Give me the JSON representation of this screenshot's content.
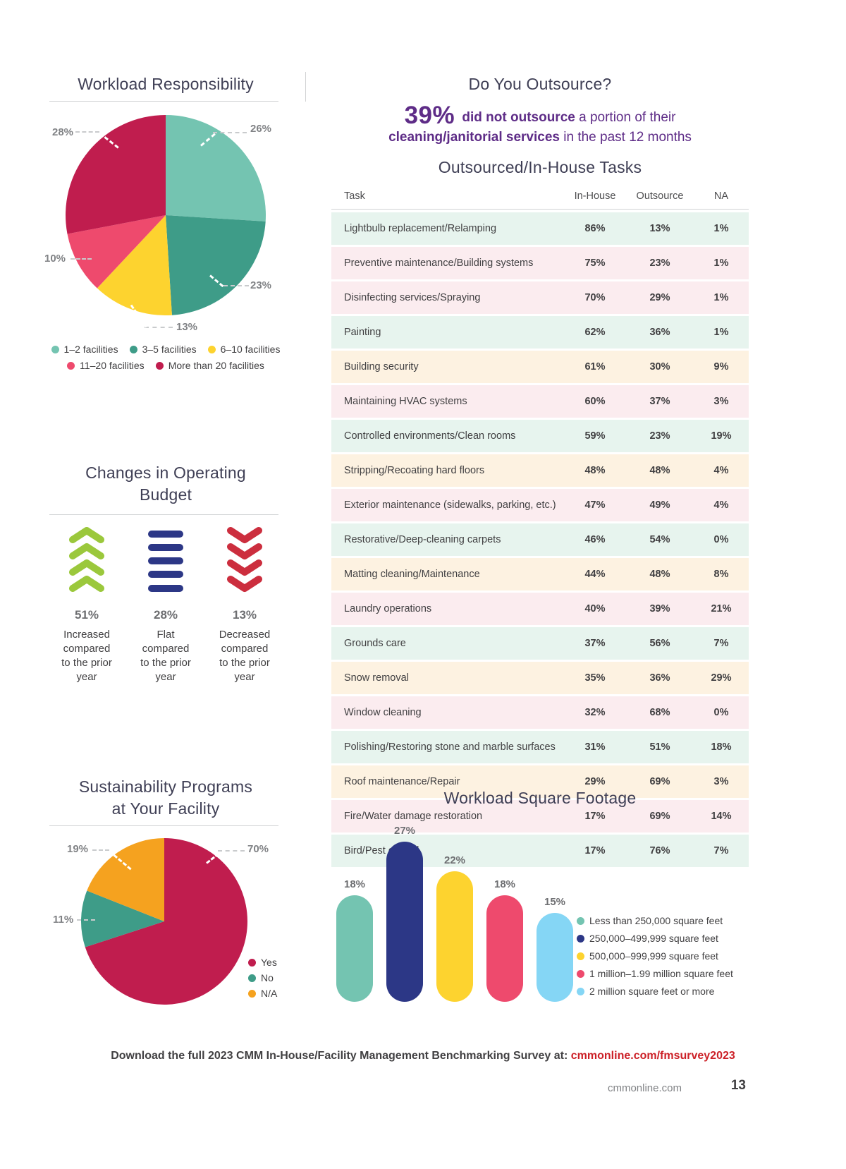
{
  "sections": {
    "outsource": {
      "title": "Do You Outsource?",
      "stat": "39%",
      "bold1": "did not outsource",
      "text1": "a portion of their",
      "bold2": "cleaning/janitorial services",
      "text2": "in the past 12 months",
      "accent_purple": "#5e2c87"
    },
    "footer": {
      "prefix": "Download the full 2023 CMM In-House/Facility Management Benchmarking Survey at: ",
      "link": "cmmonline.com/fmsurvey2023",
      "link_color": "#cc2027",
      "site": "cmmonline.com",
      "page_number": "13"
    }
  },
  "chart_data": [
    {
      "id": "workload-responsibility",
      "type": "pie",
      "title": "Workload Responsibility",
      "labels": [
        "1–2 facilities",
        "3–5 facilities",
        "6–10 facilities",
        "11–20 facilities",
        "More than 20 facilities"
      ],
      "values": [
        26,
        23,
        13,
        10,
        28
      ],
      "value_labels": [
        "26%",
        "23%",
        "13%",
        "10%",
        "28%"
      ],
      "colors": [
        "#74c4b1",
        "#3e9c88",
        "#fdd32f",
        "#ee4a6d",
        "#c01d4e"
      ],
      "start_angle": "top",
      "direction": "clockwise",
      "legend_position": "bottom"
    },
    {
      "id": "changes-in-operating-budget",
      "type": "pictogram-stats",
      "title": "Changes in Operating Budget",
      "items": [
        {
          "value": "51%",
          "label": "Increased compared to the prior year",
          "icon": "chevrons-up",
          "color": "#9bc83c"
        },
        {
          "value": "28%",
          "label": "Flat compared to the prior year",
          "icon": "flat-bars",
          "color": "#2c3786"
        },
        {
          "value": "13%",
          "label": "Decreased compared to the prior year",
          "icon": "chevrons-down",
          "color": "#cc2e3e"
        }
      ]
    },
    {
      "id": "outsourced-in-house-tasks",
      "type": "table",
      "title": "Outsourced/In-House Tasks",
      "columns": [
        "Task",
        "In-House",
        "Outsource",
        "NA"
      ],
      "rows": [
        [
          "Lightbulb replacement/Relamping",
          "86%",
          "13%",
          "1%"
        ],
        [
          "Preventive maintenance/Building systems",
          "75%",
          "23%",
          "1%"
        ],
        [
          "Disinfecting services/Spraying",
          "70%",
          "29%",
          "1%"
        ],
        [
          "Painting",
          "62%",
          "36%",
          "1%"
        ],
        [
          "Building security",
          "61%",
          "30%",
          "9%"
        ],
        [
          "Maintaining HVAC systems",
          "60%",
          "37%",
          "3%"
        ],
        [
          "Controlled environments/Clean rooms",
          "59%",
          "23%",
          "19%"
        ],
        [
          "Stripping/Recoating hard floors",
          "48%",
          "48%",
          "4%"
        ],
        [
          "Exterior maintenance (sidewalks, parking, etc.)",
          "47%",
          "49%",
          "4%"
        ],
        [
          "Restorative/Deep-cleaning carpets",
          "46%",
          "54%",
          "0%"
        ],
        [
          "Matting cleaning/Maintenance",
          "44%",
          "48%",
          "8%"
        ],
        [
          "Laundry operations",
          "40%",
          "39%",
          "21%"
        ],
        [
          "Grounds care",
          "37%",
          "56%",
          "7%"
        ],
        [
          "Snow removal",
          "35%",
          "36%",
          "29%"
        ],
        [
          "Window cleaning",
          "32%",
          "68%",
          "0%"
        ],
        [
          "Polishing/Restoring stone and marble surfaces",
          "31%",
          "51%",
          "18%"
        ],
        [
          "Roof maintenance/Repair",
          "29%",
          "69%",
          "3%"
        ],
        [
          "Fire/Water damage restoration",
          "17%",
          "69%",
          "14%"
        ],
        [
          "Bird/Pest control",
          "17%",
          "76%",
          "7%"
        ]
      ]
    },
    {
      "id": "sustainability-programs",
      "type": "pie",
      "title": "Sustainability Programs at Your Facility",
      "labels": [
        "Yes",
        "No",
        "N/A"
      ],
      "values": [
        70,
        11,
        19
      ],
      "value_labels": [
        "70%",
        "11%",
        "19%"
      ],
      "colors": [
        "#c01d4e",
        "#3e9c88",
        "#f5a21f"
      ],
      "start_angle": "top",
      "direction": "clockwise",
      "legend_position": "right"
    },
    {
      "id": "workload-square-footage",
      "type": "bar",
      "title": "Workload Square Footage",
      "categories": [
        "Less than 250,000 square feet",
        "250,000–499,999 square feet",
        "500,000–999,999 square feet",
        "1 million–1.99 million square feet",
        "2 million square feet or more"
      ],
      "values": [
        18,
        27,
        22,
        18,
        15
      ],
      "value_labels": [
        "18%",
        "27%",
        "22%",
        "18%",
        "15%"
      ],
      "colors": [
        "#74c4b1",
        "#2c3786",
        "#fdd32f",
        "#ee4a6d",
        "#85d6f5"
      ],
      "ylim": [
        0,
        30
      ],
      "grid": false,
      "legend_position": "right"
    }
  ]
}
